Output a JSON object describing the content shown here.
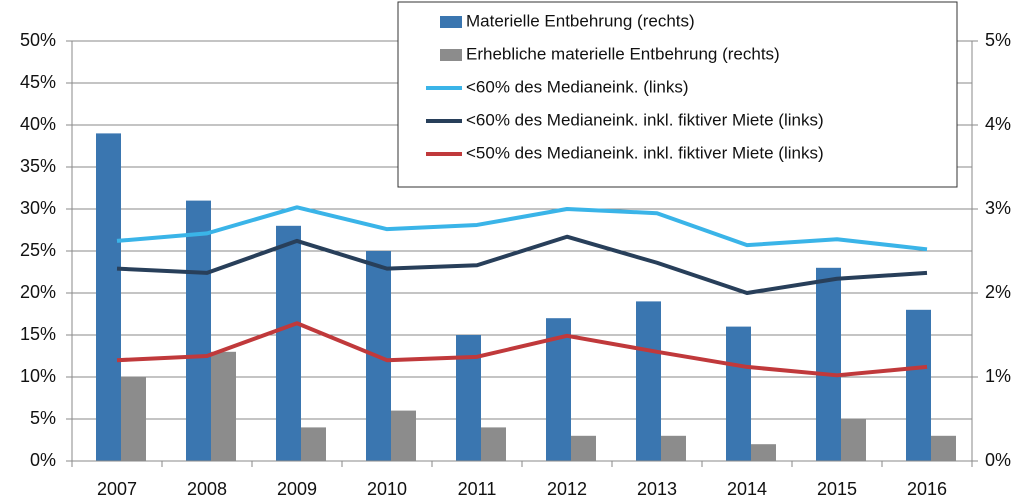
{
  "chart_data": {
    "type": "bar_line",
    "categories": [
      "2007",
      "2008",
      "2009",
      "2010",
      "2011",
      "2012",
      "2013",
      "2014",
      "2015",
      "2016"
    ],
    "series": [
      {
        "name": "Materielle Entbehrung (rechts)",
        "type": "bar",
        "axis": "y2",
        "color": "#3a76b0",
        "values": [
          3.9,
          3.1,
          2.8,
          2.5,
          1.5,
          1.7,
          1.9,
          1.6,
          2.3,
          1.8
        ]
      },
      {
        "name": "Erhebliche materielle Entbehrung (rechts)",
        "type": "bar",
        "axis": "y2",
        "color": "#8c8c8c",
        "values": [
          1.0,
          1.3,
          0.4,
          0.6,
          0.4,
          0.3,
          0.3,
          0.2,
          0.5,
          0.3
        ]
      },
      {
        "name": "<60% des Medianeink. (links)",
        "type": "line",
        "axis": "y",
        "color": "#3ab4e8",
        "values": [
          26.2,
          27.1,
          30.2,
          27.6,
          28.1,
          30.0,
          29.5,
          25.7,
          26.4,
          25.2
        ]
      },
      {
        "name": "<60% des Medianeink. inkl. fiktiver Miete (links)",
        "type": "line",
        "axis": "y",
        "color": "#283f5a",
        "values": [
          22.9,
          22.4,
          26.2,
          22.9,
          23.3,
          26.7,
          23.6,
          20.0,
          21.7,
          22.4
        ]
      },
      {
        "name": "<50% des Medianeink. inkl. fiktiver Miete (links)",
        "type": "line",
        "axis": "y",
        "color": "#c0393b",
        "values": [
          12.0,
          12.5,
          16.4,
          12.0,
          12.4,
          14.9,
          13.0,
          11.2,
          10.2,
          11.2
        ]
      }
    ],
    "ylim": [
      0,
      50
    ],
    "yticks": [
      {
        "value": 0,
        "label": "0%"
      },
      {
        "value": 5,
        "label": "5%"
      },
      {
        "value": 10,
        "label": "10%"
      },
      {
        "value": 15,
        "label": "15%"
      },
      {
        "value": 20,
        "label": "20%"
      },
      {
        "value": 25,
        "label": "25%"
      },
      {
        "value": 30,
        "label": "30%"
      },
      {
        "value": 35,
        "label": "35%"
      },
      {
        "value": 40,
        "label": "40%"
      },
      {
        "value": 45,
        "label": "45%"
      },
      {
        "value": 50,
        "label": "50%"
      }
    ],
    "y2lim": [
      0,
      5
    ],
    "y2ticks": [
      {
        "value": 0,
        "label": "0%"
      },
      {
        "value": 1,
        "label": "1%"
      },
      {
        "value": 2,
        "label": "2%"
      },
      {
        "value": 3,
        "label": "3%"
      },
      {
        "value": 4,
        "label": "4%"
      },
      {
        "value": 5,
        "label": "5%"
      }
    ],
    "grid": true,
    "legend": "top-right"
  }
}
